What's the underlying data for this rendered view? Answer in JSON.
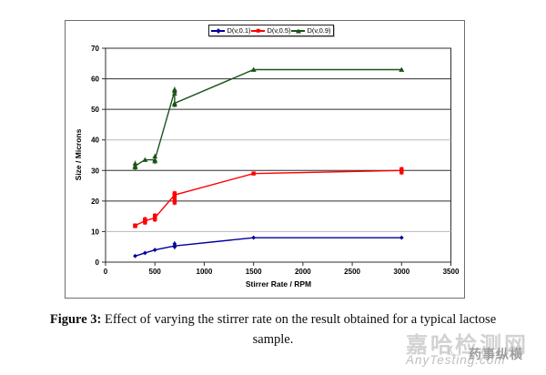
{
  "figure": {
    "caption": {
      "label": "Figure 3:",
      "line1_rest": " Effect of varying the stirrer rate on the result obtained for a typical lactose",
      "line2": "sample."
    }
  },
  "watermark": {
    "cn_large": "嘉哈检测网",
    "site": "AnyTesting.com",
    "cn_small": "药事纵横",
    "logo_glyph": "☾",
    "color_light": "#d2d2d2",
    "color_mid": "#9d9d9d"
  },
  "chart_data": {
    "type": "line",
    "title": "",
    "xlabel": "Stirrer Rate / RPM",
    "ylabel": "Size / Microns",
    "xlim": [
      0,
      3500
    ],
    "ylim": [
      0,
      70
    ],
    "x_ticks": [
      0,
      500,
      1000,
      1500,
      2000,
      2500,
      3000,
      3500
    ],
    "y_ticks": [
      0,
      10,
      20,
      30,
      40,
      50,
      60,
      70
    ],
    "grid": "horizontal",
    "legend_position": "top-center",
    "plot_border_color": "#2e2e2e",
    "gridline_color_dark": "#2e2e2e",
    "gridline_color_light": "#b9b9b9",
    "light_gridlines_at": [
      10,
      40
    ],
    "series": [
      {
        "name": "D(v,0.1)",
        "color": "#000099",
        "marker": "diamond",
        "line_points": [
          [
            300,
            2
          ],
          [
            400,
            3
          ],
          [
            500,
            4
          ],
          [
            700,
            5.3
          ],
          [
            1500,
            8
          ],
          [
            3000,
            8
          ]
        ],
        "scatter_points": [
          [
            700,
            5
          ],
          [
            700,
            6
          ]
        ]
      },
      {
        "name": "D(v,0.5)",
        "color": "#ff0000",
        "marker": "square",
        "line_points": [
          [
            300,
            12
          ],
          [
            400,
            13.5
          ],
          [
            500,
            14.5
          ],
          [
            700,
            22
          ],
          [
            1500,
            29
          ],
          [
            3000,
            30
          ]
        ],
        "scatter_points": [
          [
            300,
            11.8
          ],
          [
            400,
            13
          ],
          [
            400,
            14
          ],
          [
            500,
            14
          ],
          [
            500,
            15.2
          ],
          [
            700,
            19.5
          ],
          [
            700,
            20.5
          ],
          [
            700,
            21.5
          ],
          [
            700,
            22.5
          ],
          [
            3000,
            29.4
          ],
          [
            3000,
            30.4
          ]
        ]
      },
      {
        "name": "D(v,0.9)",
        "color": "#1b531b",
        "marker": "triangle",
        "line_points": [
          [
            300,
            31.5
          ],
          [
            400,
            33.5
          ],
          [
            500,
            33.5
          ],
          [
            700,
            56
          ],
          [
            700,
            52
          ],
          [
            1500,
            63
          ],
          [
            3000,
            63
          ]
        ],
        "scatter_points": [
          [
            300,
            31
          ],
          [
            300,
            32.3
          ],
          [
            400,
            33.5
          ],
          [
            500,
            33
          ],
          [
            500,
            34.6
          ],
          [
            700,
            51.5
          ],
          [
            700,
            55.2
          ],
          [
            700,
            56.5
          ],
          [
            1500,
            63
          ],
          [
            3000,
            63
          ]
        ]
      }
    ]
  }
}
